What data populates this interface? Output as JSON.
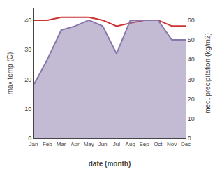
{
  "chart_data": {
    "type": "line",
    "categories": [
      "Jan",
      "Feb",
      "Mar",
      "Apr",
      "May",
      "Jun",
      "Jul",
      "Aug",
      "Sep",
      "Oct",
      "Nov",
      "Dec"
    ],
    "series": [
      {
        "type": "line",
        "color": "#cc3333",
        "values": [
          40,
          40,
          41,
          41,
          41,
          40,
          38,
          39,
          40,
          40,
          38,
          38
        ]
      },
      {
        "type": "area",
        "color": "#8877aa",
        "axis": "y2",
        "values": [
          27,
          40,
          55,
          57,
          60,
          57,
          43,
          60,
          60,
          60,
          50,
          50
        ]
      }
    ],
    "xlabel": "date (month)",
    "ylabel": "max temp (C)",
    "y2label": "med. precipitation (kg/m2)",
    "ylim": [
      0,
      44
    ],
    "yticks": [
      0,
      10,
      20,
      30,
      40
    ],
    "y2lim": [
      0,
      66
    ],
    "y2ticks": [
      0,
      10,
      20,
      30,
      40,
      50,
      60
    ],
    "grid": false
  }
}
